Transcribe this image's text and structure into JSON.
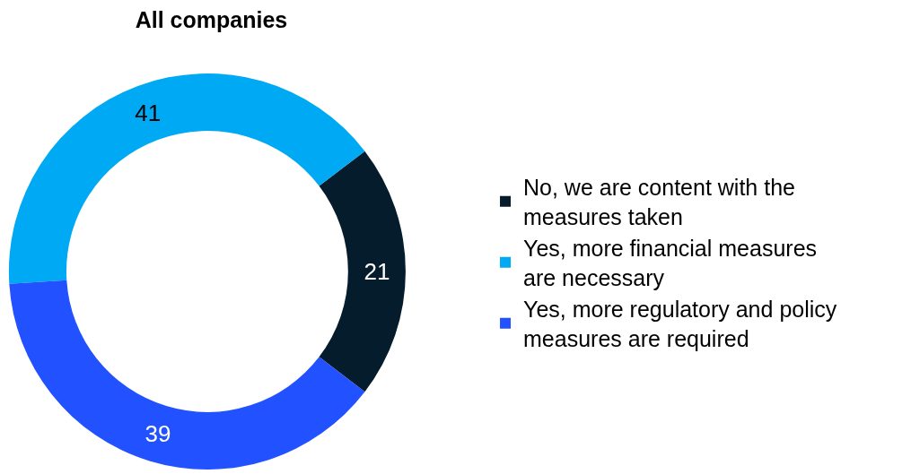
{
  "chart_data": {
    "type": "donut",
    "title": "All companies",
    "categories": [
      "No, we are content with the measures taken",
      "Yes, more financial measures are necessary",
      "Yes, more regulatory and policy measures are required"
    ],
    "values": [
      21,
      41,
      39
    ],
    "colors": [
      "#051c2c",
      "#00a9f4",
      "#2251ff"
    ],
    "data_labels": true,
    "legend": "right"
  }
}
